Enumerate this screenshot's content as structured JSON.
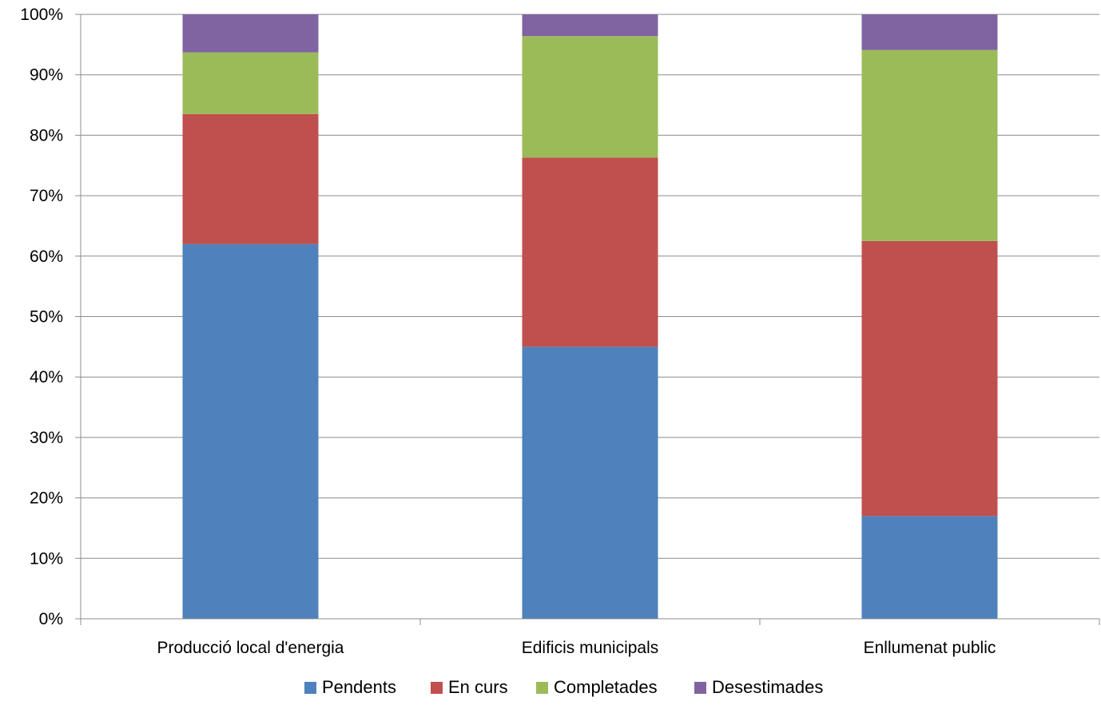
{
  "chart_data": {
    "type": "bar",
    "stacked": true,
    "percent": true,
    "categories": [
      "Producció local d'energia",
      "Edificis municipals",
      "Enllumenat public"
    ],
    "series": [
      {
        "name": "Pendents",
        "color": "#4F81BD",
        "values": [
          62,
          45,
          17
        ]
      },
      {
        "name": "En curs",
        "color": "#C0504D",
        "values": [
          21.5,
          31.3,
          45.5
        ]
      },
      {
        "name": "Completades",
        "color": "#9BBB59",
        "values": [
          10.2,
          20.1,
          31.6
        ]
      },
      {
        "name": "Desestimades",
        "color": "#8064A2",
        "values": [
          6.3,
          3.6,
          5.9
        ]
      }
    ],
    "ylim": [
      0,
      100
    ],
    "yticks": [
      "0%",
      "10%",
      "20%",
      "30%",
      "40%",
      "50%",
      "60%",
      "70%",
      "80%",
      "90%",
      "100%"
    ],
    "grid": true,
    "legend": "bottom",
    "title": "",
    "xlabel": "",
    "ylabel": ""
  }
}
